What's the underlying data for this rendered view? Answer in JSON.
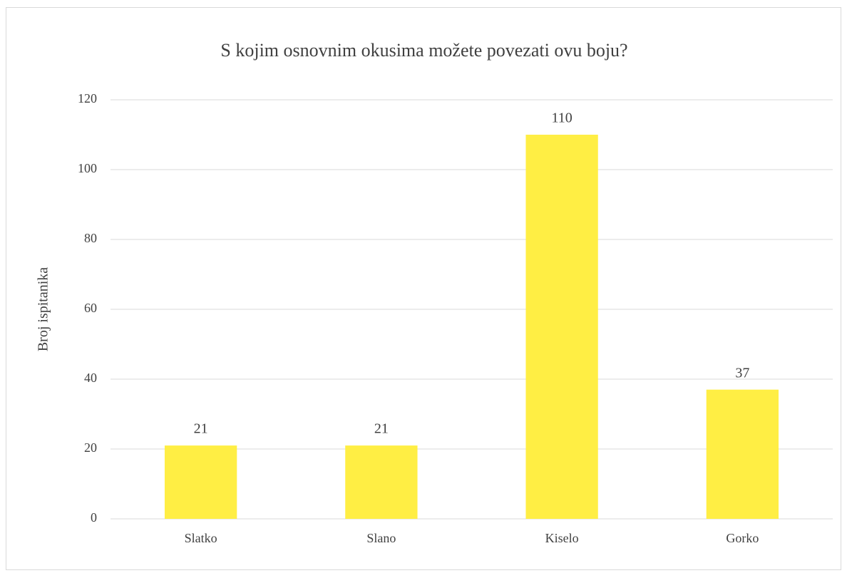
{
  "chart_data": {
    "type": "bar",
    "title": "S kojim osnovnim okusima možete povezati ovu boju?",
    "y_label": "Broj ispitanika",
    "categories": [
      "Slatko",
      "Slano",
      "Kiselo",
      "Gorko"
    ],
    "values": [
      21,
      21,
      110,
      37
    ],
    "color": "#ffee44",
    "ylim": [
      0,
      120
    ],
    "yticks": [
      0,
      20,
      40,
      60,
      80,
      100,
      120
    ],
    "grid": true,
    "data_labels": true
  }
}
